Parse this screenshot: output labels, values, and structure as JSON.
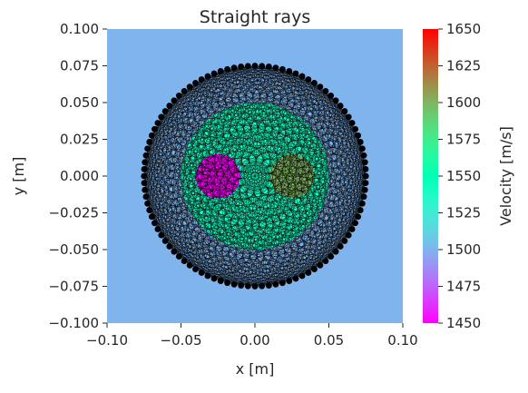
{
  "chart_data": {
    "type": "heatmap",
    "title": "Straight rays",
    "xlabel": "x [m]",
    "ylabel": "y [m]",
    "xlim": [
      -0.1,
      0.1
    ],
    "ylim": [
      0.1,
      -0.1
    ],
    "xticks": [
      -0.1,
      -0.05,
      0.0,
      0.05,
      0.1
    ],
    "xtick_labels": [
      "−0.10",
      "−0.05",
      "0.00",
      "0.05",
      "0.10"
    ],
    "yticks": [
      -0.1,
      -0.075,
      -0.05,
      -0.025,
      0.0,
      0.025,
      0.05,
      0.075,
      0.1
    ],
    "ytick_labels": [
      "−0.100",
      "−0.075",
      "−0.050",
      "−0.025",
      "0.000",
      "0.025",
      "0.050",
      "0.075",
      "0.100"
    ],
    "background_velocity": 1500,
    "regions": [
      {
        "shape": "circle",
        "center": [
          0.0,
          0.0
        ],
        "radius": 0.05,
        "velocity": 1540
      },
      {
        "shape": "circle",
        "center": [
          -0.025,
          0.0
        ],
        "radius": 0.015,
        "velocity": 1450
      },
      {
        "shape": "circle",
        "center": [
          0.025,
          0.0
        ],
        "radius": 0.015,
        "velocity": 1600
      }
    ],
    "transducers": {
      "count": 100,
      "ring_radius": 0.075,
      "color": "#000000"
    },
    "rays": {
      "type": "straight",
      "color": "#000000"
    },
    "colorbar": {
      "label": "Velocity [m/s]",
      "min": 1450,
      "max": 1650,
      "ticks": [
        1450,
        1475,
        1500,
        1525,
        1550,
        1575,
        1600,
        1625,
        1650
      ],
      "tick_labels": [
        "1450",
        "1475",
        "1500",
        "1525",
        "1550",
        "1575",
        "1600",
        "1625",
        "1650"
      ],
      "colormap": "rainbow"
    }
  }
}
